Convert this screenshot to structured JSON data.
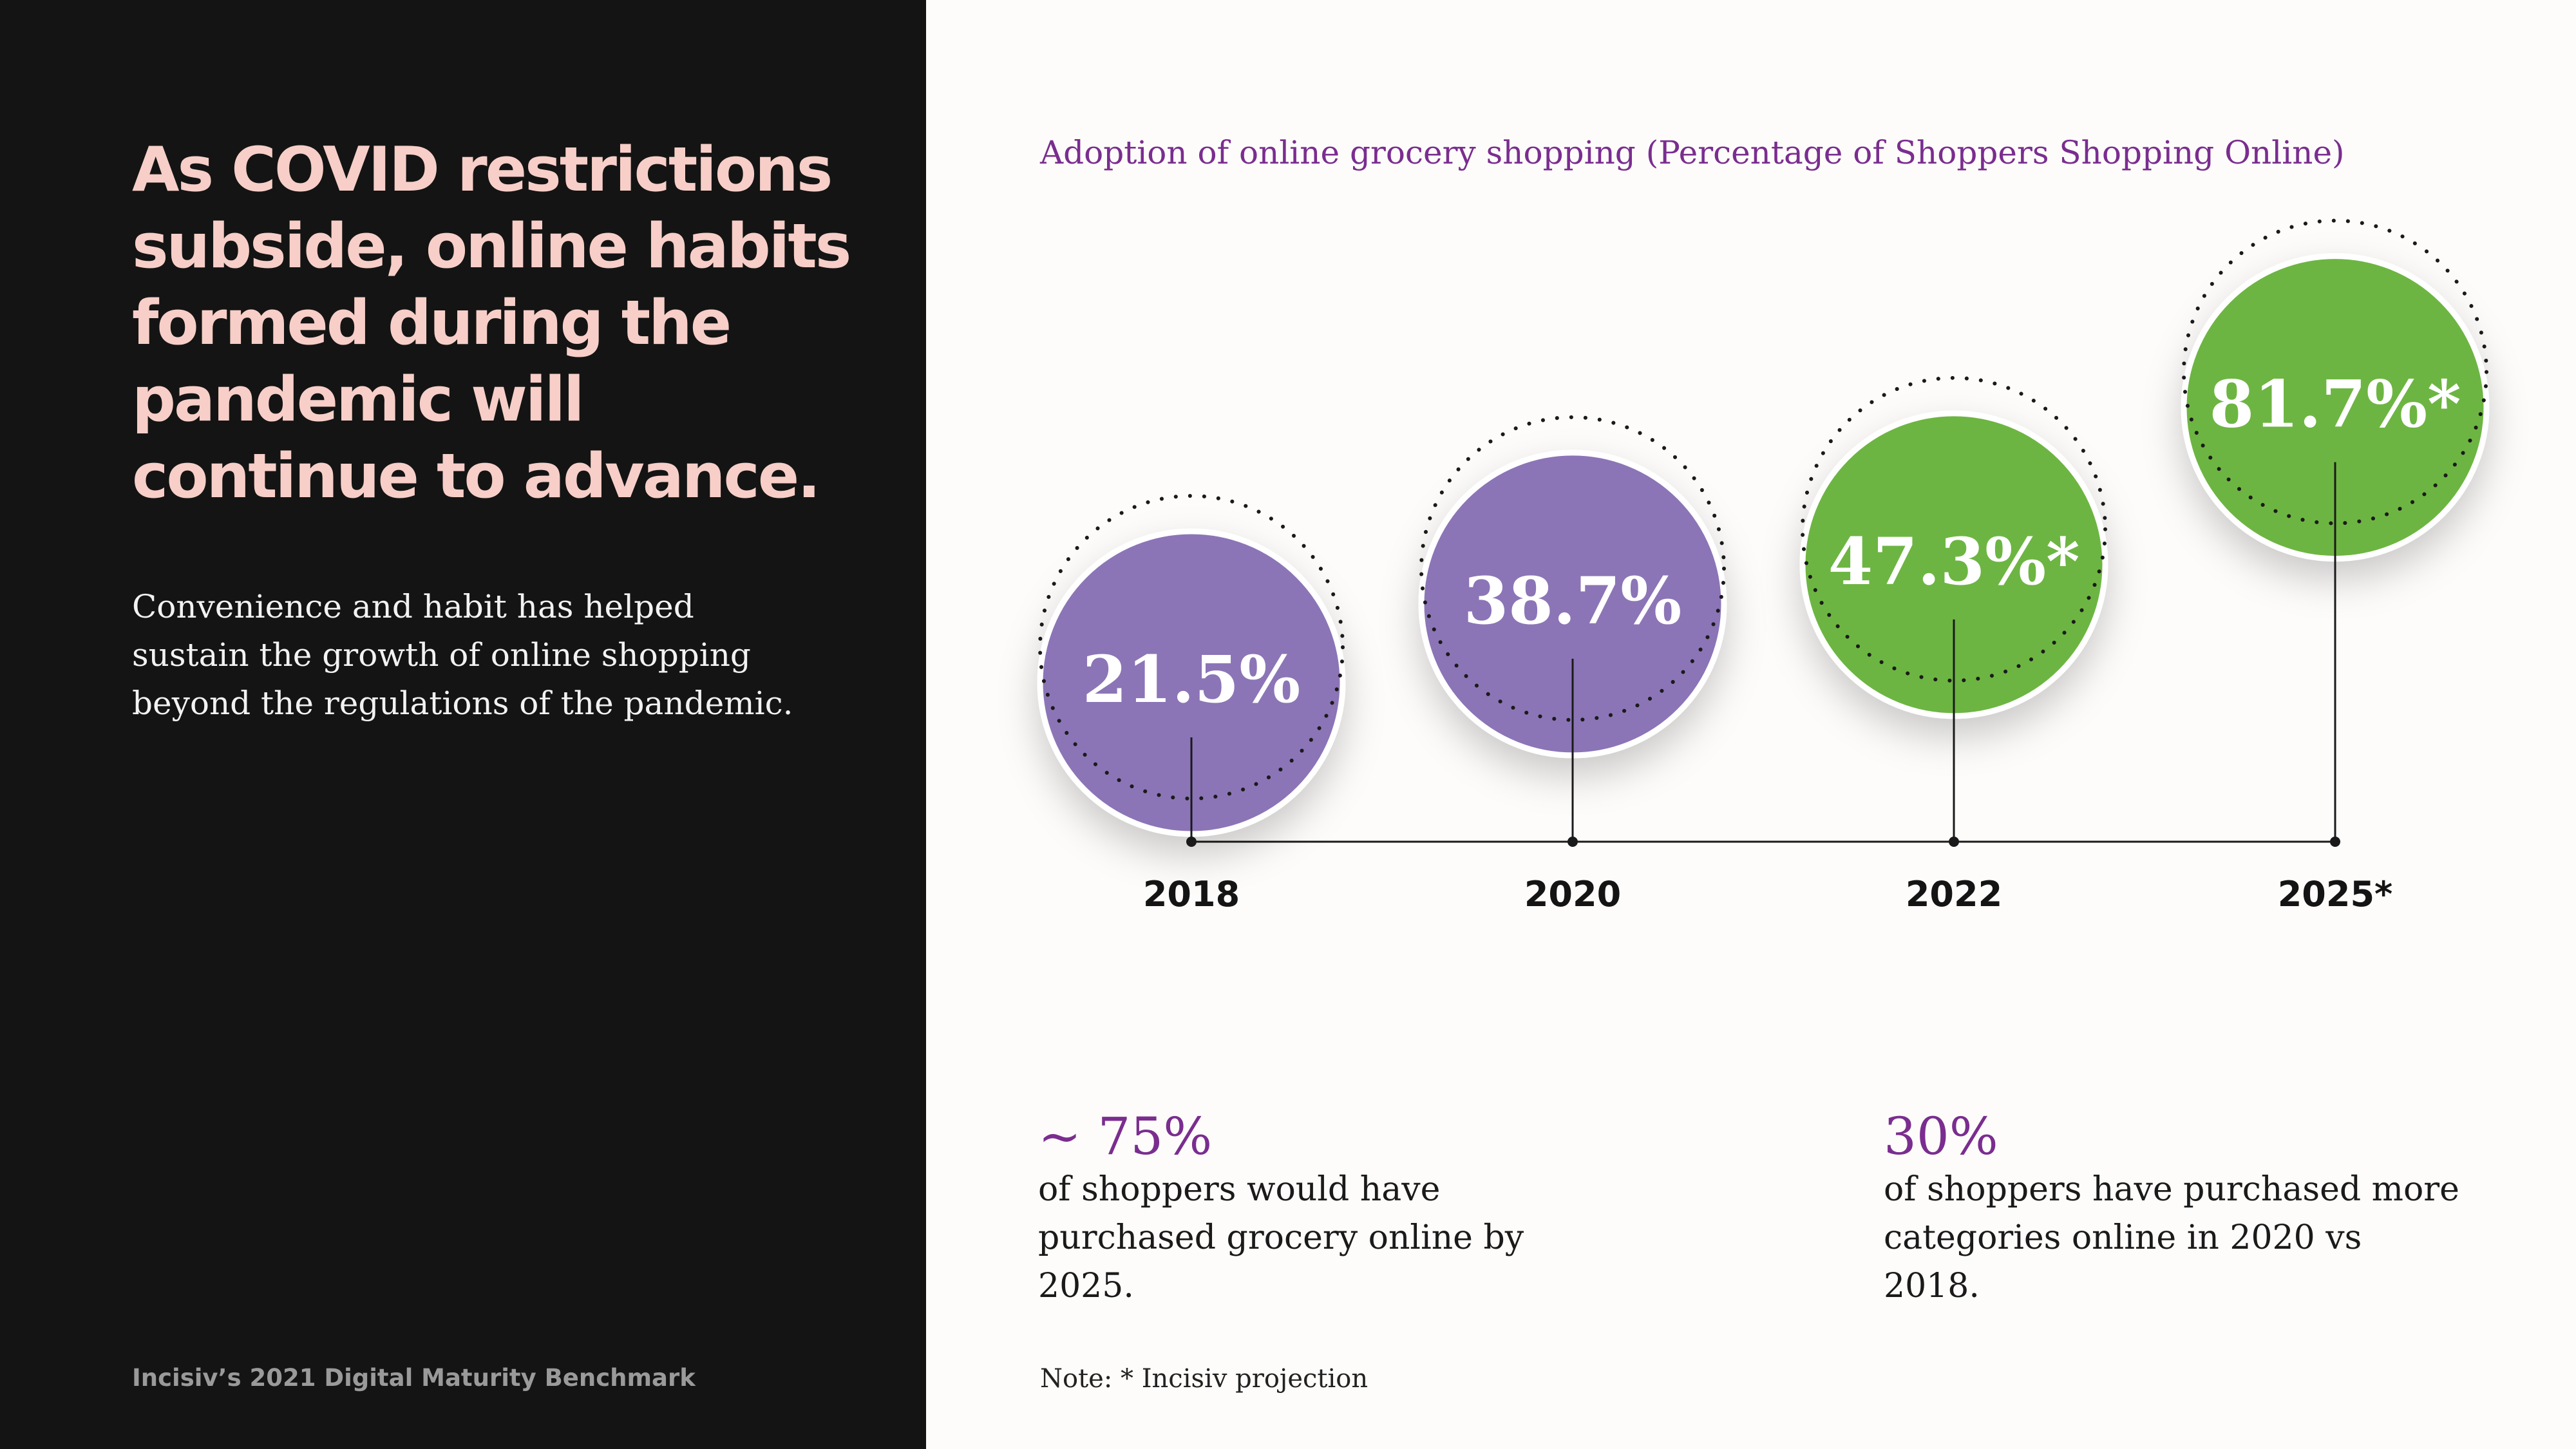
{
  "headline": "As COVID restrictions subside, online habits formed during the pandemic will continue to advance.",
  "subtext": "Convenience and habit has helped sustain the growth of online shopping beyond the regulations of the pandemic.",
  "footer_source": "Incisiv’s 2021 Digital Maturity Benchmark",
  "colors": {
    "actual": "#8b75b6",
    "projected": "#6db542",
    "accent_text": "#7a2d8f",
    "left_panel": "#141414",
    "headline": "#f7cfc8"
  },
  "chart_data": {
    "type": "bubble-timeline",
    "title": "Adoption of online grocery shopping (Percentage of Shoppers Shopping Online)",
    "unit": "%",
    "categories": [
      "2018",
      "2020",
      "2022",
      "2025*"
    ],
    "values": [
      21.5,
      38.7,
      47.3,
      81.7
    ],
    "value_labels": [
      "21.5%",
      "38.7%",
      "47.3%*",
      "81.7%*"
    ],
    "projected": [
      false,
      false,
      true,
      true
    ]
  },
  "stats": [
    {
      "value": "~ 75%",
      "text": "of shoppers would have purchased grocery online by 2025."
    },
    {
      "value": "30%",
      "text": "of shoppers have  purchased more categories online in 2020 vs 2018."
    }
  ],
  "note": "Note: * Incisiv  projection"
}
